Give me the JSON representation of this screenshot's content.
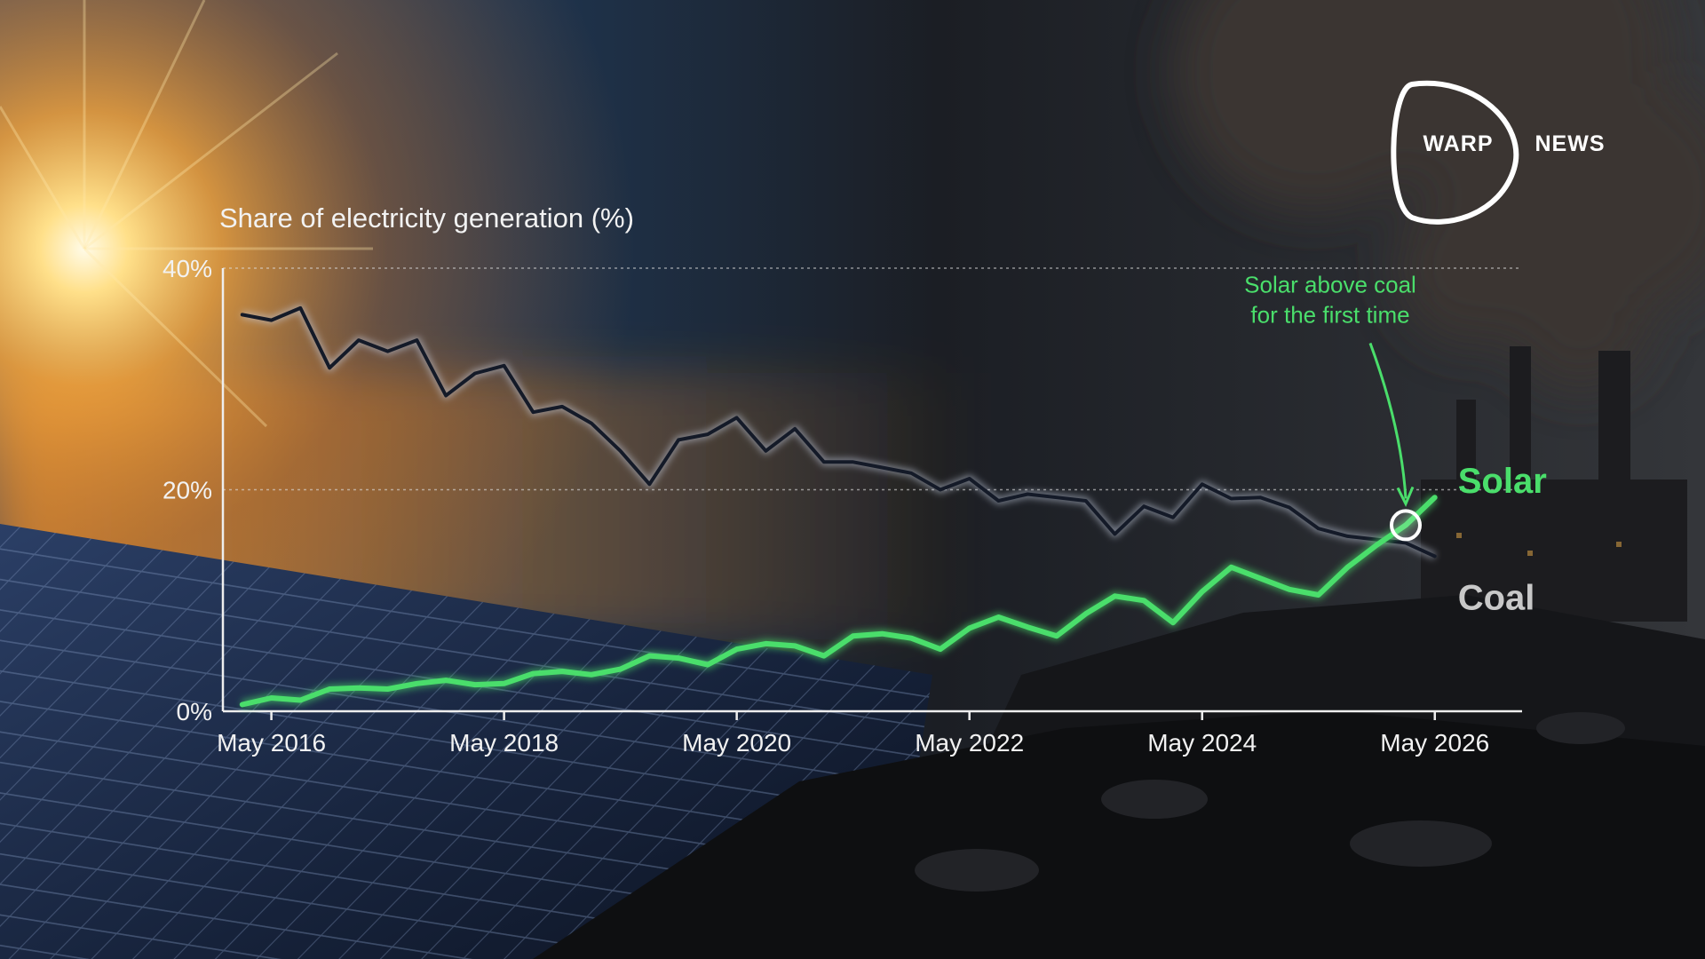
{
  "branding": {
    "left": "WARP",
    "right": "NEWS"
  },
  "chart_data": {
    "type": "line",
    "title": "Share of electricity generation (%)",
    "x": [
      "2016-02",
      "2016-05",
      "2016-08",
      "2016-11",
      "2017-02",
      "2017-05",
      "2017-08",
      "2017-11",
      "2018-02",
      "2018-05",
      "2018-08",
      "2018-11",
      "2019-02",
      "2019-05",
      "2019-08",
      "2019-11",
      "2020-02",
      "2020-05",
      "2020-08",
      "2020-11",
      "2021-02",
      "2021-05",
      "2021-08",
      "2021-11",
      "2022-02",
      "2022-05",
      "2022-08",
      "2022-11",
      "2023-02",
      "2023-05",
      "2023-08",
      "2023-11",
      "2024-02",
      "2024-05",
      "2024-08",
      "2024-11",
      "2025-02",
      "2025-05",
      "2025-08",
      "2025-11",
      "2026-02",
      "2026-05"
    ],
    "series": [
      {
        "name": "Coal",
        "color": "#141a28",
        "values": [
          35.8,
          35.3,
          36.4,
          31,
          33.5,
          32.5,
          33.5,
          28.5,
          30.5,
          31.2,
          27,
          27.5,
          26,
          23.5,
          20.5,
          24.5,
          25,
          26.5,
          23.5,
          25.5,
          22.5,
          22.5,
          22,
          21.5,
          20,
          21,
          19,
          19.6,
          19.3,
          19,
          16,
          18.5,
          17.5,
          20.5,
          19.2,
          19.3,
          18.4,
          16.5,
          15.8,
          15.5,
          15.2,
          14
        ]
      },
      {
        "name": "Solar",
        "color": "#4ade6b",
        "values": [
          0.6,
          1.2,
          1,
          2,
          2.1,
          2,
          2.5,
          2.8,
          2.4,
          2.5,
          3.4,
          3.6,
          3.3,
          3.8,
          5,
          4.8,
          4.2,
          5.6,
          6.1,
          5.9,
          5,
          6.8,
          7,
          6.6,
          5.6,
          7.5,
          8.5,
          7.6,
          6.8,
          8.8,
          10.4,
          10,
          8,
          10.8,
          13,
          12,
          11,
          10.5,
          13,
          15,
          16.8,
          19.3
        ]
      }
    ],
    "xlim": [
      "2015-12",
      "2027-02"
    ],
    "xticks": [
      {
        "value": "2016-05",
        "label": "May 2016"
      },
      {
        "value": "2018-05",
        "label": "May 2018"
      },
      {
        "value": "2020-05",
        "label": "May 2020"
      },
      {
        "value": "2022-05",
        "label": "May 2022"
      },
      {
        "value": "2024-05",
        "label": "May 2024"
      },
      {
        "value": "2026-05",
        "label": "May 2026"
      }
    ],
    "ylim": [
      0,
      40
    ],
    "yticks": [
      {
        "value": 0,
        "label": "0%"
      },
      {
        "value": 20,
        "label": "20%"
      },
      {
        "value": 40,
        "label": "40%"
      }
    ],
    "grid": true,
    "annotation": [
      "Solar above coal",
      "for the first time"
    ]
  }
}
